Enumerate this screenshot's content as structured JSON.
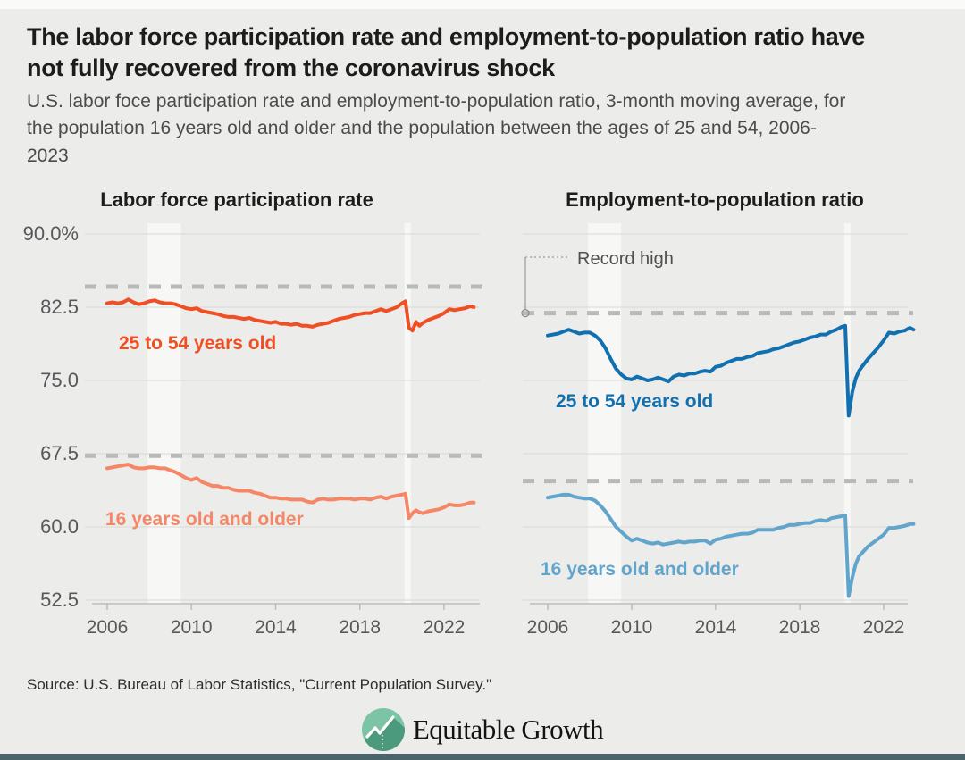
{
  "page": {
    "title": "The labor force participation rate and employment-to-population ratio have not fully recovered from the coronavirus shock",
    "subtitle": "U.S. labor foce participation rate and employment-to-population ratio, 3-month moving average, for the population 16 years old and older and the population between the ages of 25 and 54, 2006-2023",
    "source": "Source: U.S. Bureau of Labor Statistics, \"Current Population Survey.\"",
    "logo_text": "Equitable Growth"
  },
  "colors": {
    "background": "#ececeb",
    "recession_band": "#f7f7f6",
    "gridline": "#d8d8d6",
    "axis_line": "#bdbdbb",
    "dashed_record_line": "#b9b9b7",
    "axis_text": "#58585a",
    "annotation_text": "#4f4f51",
    "orange": "#f04e23",
    "light_orange": "#f58767",
    "blue": "#1170b0",
    "light_blue": "#61a5cc",
    "footer_bar": "#4b646b",
    "logo_green_light": "#7cc4a5",
    "logo_green_dark": "#4c9a7e"
  },
  "chart_data": [
    {
      "type": "line",
      "title": "Labor force participation rate",
      "ylim": [
        52.5,
        90.0
      ],
      "yticks": [
        90.0,
        82.5,
        75.0,
        67.5,
        60.0,
        52.5
      ],
      "ytick_labels": [
        "90.0%",
        "82.5",
        "75.0",
        "67.5",
        "60.0",
        "52.5"
      ],
      "show_ytick_labels": true,
      "xticks": [
        2006,
        2010,
        2014,
        2018,
        2022
      ],
      "recession_bands": [
        [
          2007.92,
          2009.5
        ],
        [
          2020.12,
          2020.42
        ]
      ],
      "record_high_values": [
        84.6,
        67.3
      ],
      "grid": true,
      "series": [
        {
          "name": "25 to 54 years old",
          "color": "#f04e23",
          "x": [
            2006.0,
            2006.25,
            2006.5,
            2006.75,
            2007.0,
            2007.25,
            2007.5,
            2007.75,
            2008.0,
            2008.25,
            2008.5,
            2008.75,
            2009.0,
            2009.25,
            2009.5,
            2009.75,
            2010.0,
            2010.25,
            2010.5,
            2010.75,
            2011.0,
            2011.25,
            2011.5,
            2011.75,
            2012.0,
            2012.25,
            2012.5,
            2012.75,
            2013.0,
            2013.25,
            2013.5,
            2013.75,
            2014.0,
            2014.25,
            2014.5,
            2014.75,
            2015.0,
            2015.25,
            2015.5,
            2015.75,
            2016.0,
            2016.25,
            2016.5,
            2016.75,
            2017.0,
            2017.25,
            2017.5,
            2017.75,
            2018.0,
            2018.25,
            2018.5,
            2018.75,
            2019.0,
            2019.25,
            2019.5,
            2019.75,
            2020.0,
            2020.17,
            2020.33,
            2020.5,
            2020.67,
            2020.83,
            2021.0,
            2021.25,
            2021.5,
            2021.75,
            2022.0,
            2022.25,
            2022.5,
            2022.75,
            2023.0,
            2023.25,
            2023.42
          ],
          "y": [
            82.9,
            83.0,
            82.9,
            83.0,
            83.3,
            83.0,
            82.8,
            82.9,
            83.1,
            83.2,
            83.0,
            82.9,
            82.9,
            82.8,
            82.6,
            82.4,
            82.3,
            82.4,
            82.1,
            82.0,
            81.9,
            81.8,
            81.6,
            81.5,
            81.5,
            81.4,
            81.3,
            81.4,
            81.2,
            81.1,
            81.0,
            80.9,
            81.0,
            80.8,
            80.8,
            80.7,
            80.8,
            80.6,
            80.6,
            80.5,
            80.7,
            80.8,
            80.9,
            81.1,
            81.3,
            81.4,
            81.5,
            81.7,
            81.8,
            81.9,
            81.9,
            82.1,
            82.3,
            82.1,
            82.3,
            82.5,
            82.9,
            83.1,
            80.4,
            80.1,
            81.0,
            80.6,
            80.9,
            81.2,
            81.4,
            81.6,
            81.9,
            82.3,
            82.2,
            82.3,
            82.4,
            82.6,
            82.5
          ]
        },
        {
          "name": "16 years old and older",
          "color": "#f58767",
          "x": [
            2006.0,
            2006.25,
            2006.5,
            2006.75,
            2007.0,
            2007.25,
            2007.5,
            2007.75,
            2008.0,
            2008.25,
            2008.5,
            2008.75,
            2009.0,
            2009.25,
            2009.5,
            2009.75,
            2010.0,
            2010.25,
            2010.5,
            2010.75,
            2011.0,
            2011.25,
            2011.5,
            2011.75,
            2012.0,
            2012.25,
            2012.5,
            2012.75,
            2013.0,
            2013.25,
            2013.5,
            2013.75,
            2014.0,
            2014.25,
            2014.5,
            2014.75,
            2015.0,
            2015.25,
            2015.5,
            2015.75,
            2016.0,
            2016.25,
            2016.5,
            2016.75,
            2017.0,
            2017.25,
            2017.5,
            2017.75,
            2018.0,
            2018.25,
            2018.5,
            2018.75,
            2019.0,
            2019.25,
            2019.5,
            2019.75,
            2020.0,
            2020.17,
            2020.33,
            2020.5,
            2020.67,
            2020.83,
            2021.0,
            2021.25,
            2021.5,
            2021.75,
            2022.0,
            2022.25,
            2022.5,
            2022.75,
            2023.0,
            2023.25,
            2023.42
          ],
          "y": [
            66.0,
            66.1,
            66.2,
            66.3,
            66.4,
            66.1,
            66.0,
            66.0,
            66.1,
            66.1,
            66.0,
            66.0,
            65.8,
            65.6,
            65.3,
            65.0,
            64.8,
            65.0,
            64.6,
            64.4,
            64.2,
            64.2,
            64.0,
            64.0,
            63.8,
            63.7,
            63.7,
            63.7,
            63.5,
            63.4,
            63.2,
            63.0,
            63.0,
            62.9,
            62.9,
            62.8,
            62.8,
            62.8,
            62.6,
            62.5,
            62.8,
            62.9,
            62.8,
            62.8,
            62.9,
            62.9,
            62.9,
            62.8,
            62.9,
            62.9,
            62.8,
            63.0,
            63.1,
            62.9,
            63.1,
            63.2,
            63.3,
            63.4,
            60.9,
            61.4,
            61.7,
            61.5,
            61.4,
            61.6,
            61.7,
            61.8,
            62.0,
            62.3,
            62.2,
            62.2,
            62.3,
            62.5,
            62.5
          ]
        }
      ]
    },
    {
      "type": "line",
      "title": "Employment-to-population ratio",
      "ylim": [
        52.5,
        90.0
      ],
      "yticks": [
        90.0,
        82.5,
        75.0,
        67.5,
        60.0,
        52.5
      ],
      "ytick_labels": [],
      "show_ytick_labels": false,
      "xticks": [
        2006,
        2010,
        2014,
        2018,
        2022
      ],
      "recession_bands": [
        [
          2007.92,
          2009.5
        ],
        [
          2020.12,
          2020.42
        ]
      ],
      "record_high_values": [
        81.9,
        64.7
      ],
      "grid": true,
      "annotation": {
        "text": "Record high",
        "points_to_value": 81.9
      },
      "series": [
        {
          "name": "25 to 54 years old",
          "color": "#1170b0",
          "x": [
            2006.0,
            2006.25,
            2006.5,
            2006.75,
            2007.0,
            2007.25,
            2007.5,
            2007.75,
            2008.0,
            2008.25,
            2008.5,
            2008.75,
            2009.0,
            2009.25,
            2009.5,
            2009.75,
            2010.0,
            2010.25,
            2010.5,
            2010.75,
            2011.0,
            2011.25,
            2011.5,
            2011.75,
            2012.0,
            2012.25,
            2012.5,
            2012.75,
            2013.0,
            2013.25,
            2013.5,
            2013.75,
            2014.0,
            2014.25,
            2014.5,
            2014.75,
            2015.0,
            2015.25,
            2015.5,
            2015.75,
            2016.0,
            2016.25,
            2016.5,
            2016.75,
            2017.0,
            2017.25,
            2017.5,
            2017.75,
            2018.0,
            2018.25,
            2018.5,
            2018.75,
            2019.0,
            2019.25,
            2019.5,
            2019.75,
            2020.0,
            2020.17,
            2020.33,
            2020.5,
            2020.67,
            2020.83,
            2021.0,
            2021.25,
            2021.5,
            2021.75,
            2022.0,
            2022.25,
            2022.5,
            2022.75,
            2023.0,
            2023.25,
            2023.42
          ],
          "y": [
            79.6,
            79.7,
            79.8,
            80.0,
            80.2,
            80.0,
            79.8,
            79.9,
            79.9,
            79.6,
            79.1,
            78.3,
            77.2,
            76.2,
            75.6,
            75.2,
            75.1,
            75.4,
            75.2,
            75.0,
            75.1,
            75.3,
            75.1,
            74.9,
            75.4,
            75.6,
            75.5,
            75.7,
            75.7,
            75.9,
            76.0,
            75.9,
            76.4,
            76.5,
            76.8,
            77.0,
            77.2,
            77.2,
            77.4,
            77.5,
            77.8,
            77.9,
            78.0,
            78.2,
            78.3,
            78.5,
            78.7,
            78.9,
            79.0,
            79.2,
            79.4,
            79.5,
            79.7,
            79.7,
            80.0,
            80.2,
            80.5,
            80.6,
            71.4,
            73.8,
            75.2,
            76.0,
            76.5,
            77.2,
            77.8,
            78.4,
            79.1,
            79.9,
            79.8,
            80.0,
            80.1,
            80.4,
            80.2
          ]
        },
        {
          "name": "16 years old and older",
          "color": "#61a5cc",
          "x": [
            2006.0,
            2006.25,
            2006.5,
            2006.75,
            2007.0,
            2007.25,
            2007.5,
            2007.75,
            2008.0,
            2008.25,
            2008.5,
            2008.75,
            2009.0,
            2009.25,
            2009.5,
            2009.75,
            2010.0,
            2010.25,
            2010.5,
            2010.75,
            2011.0,
            2011.25,
            2011.5,
            2011.75,
            2012.0,
            2012.25,
            2012.5,
            2012.75,
            2013.0,
            2013.25,
            2013.5,
            2013.75,
            2014.0,
            2014.25,
            2014.5,
            2014.75,
            2015.0,
            2015.25,
            2015.5,
            2015.75,
            2016.0,
            2016.25,
            2016.5,
            2016.75,
            2017.0,
            2017.25,
            2017.5,
            2017.75,
            2018.0,
            2018.25,
            2018.5,
            2018.75,
            2019.0,
            2019.25,
            2019.5,
            2019.75,
            2020.0,
            2020.17,
            2020.33,
            2020.5,
            2020.67,
            2020.83,
            2021.0,
            2021.25,
            2021.5,
            2021.75,
            2022.0,
            2022.25,
            2022.5,
            2022.75,
            2023.0,
            2023.25,
            2023.42
          ],
          "y": [
            63.0,
            63.1,
            63.2,
            63.3,
            63.3,
            63.1,
            63.0,
            62.9,
            62.9,
            62.7,
            62.2,
            61.6,
            60.8,
            60.0,
            59.5,
            59.0,
            58.6,
            58.8,
            58.6,
            58.4,
            58.3,
            58.4,
            58.2,
            58.3,
            58.4,
            58.5,
            58.4,
            58.5,
            58.5,
            58.6,
            58.6,
            58.3,
            58.7,
            58.8,
            59.0,
            59.1,
            59.2,
            59.3,
            59.3,
            59.4,
            59.7,
            59.7,
            59.7,
            59.7,
            59.9,
            60.0,
            60.2,
            60.2,
            60.3,
            60.4,
            60.4,
            60.6,
            60.7,
            60.6,
            60.9,
            61.0,
            61.1,
            61.2,
            52.9,
            54.8,
            56.2,
            57.0,
            57.4,
            58.0,
            58.4,
            58.8,
            59.2,
            59.9,
            59.9,
            60.0,
            60.1,
            60.3,
            60.3
          ]
        }
      ]
    }
  ]
}
